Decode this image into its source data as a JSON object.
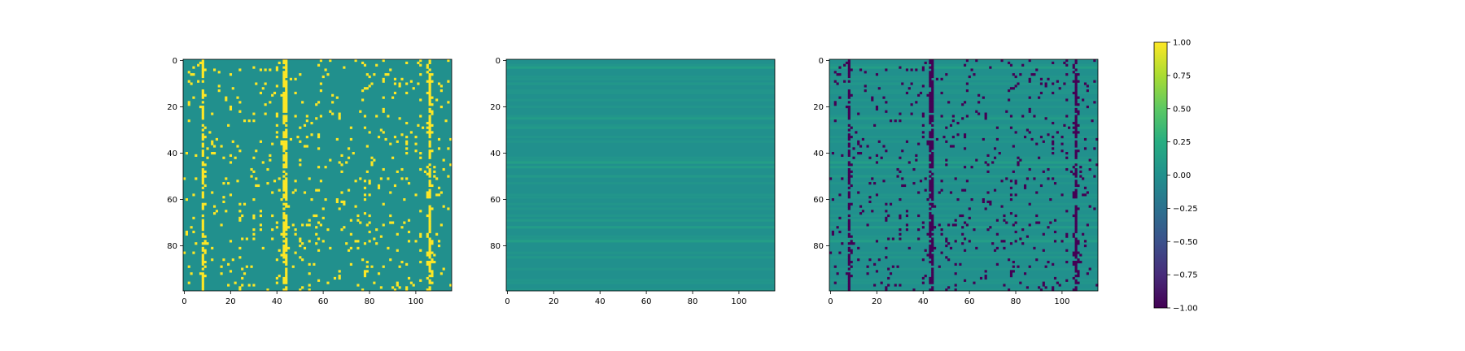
{
  "chart_data": [
    {
      "type": "heatmap",
      "title": "",
      "xlabel": "",
      "ylabel": "",
      "rows": 100,
      "cols": 116,
      "x_ticks": [
        "0",
        "20",
        "40",
        "60",
        "80",
        "100"
      ],
      "y_ticks": [
        "0",
        "20",
        "40",
        "60",
        "80"
      ],
      "value_range": [
        -1,
        1
      ],
      "background_value": 0.0,
      "highlight_value": 1.0,
      "dense_columns": [
        8,
        43,
        44,
        106
      ],
      "note_values": "binary matrix: cells are 0 or 1"
    },
    {
      "type": "heatmap",
      "title": "",
      "xlabel": "",
      "ylabel": "",
      "rows": 100,
      "cols": 116,
      "x_ticks": [
        "0",
        "20",
        "40",
        "60",
        "80",
        "100"
      ],
      "y_ticks": [
        "0",
        "20",
        "40",
        "60",
        "80"
      ],
      "value_range": [
        -1,
        1
      ],
      "background_value": 0.0,
      "row_band_values": [
        {
          "row": 3,
          "value": 0.12
        },
        {
          "row": 10,
          "value": 0.06
        },
        {
          "row": 25,
          "value": 0.1
        },
        {
          "row": 29,
          "value": 0.08
        },
        {
          "row": 44,
          "value": 0.12
        },
        {
          "row": 46,
          "value": 0.1
        },
        {
          "row": 50,
          "value": 0.08
        },
        {
          "row": 69,
          "value": 0.08
        },
        {
          "row": 72,
          "value": 0.1
        },
        {
          "row": 78,
          "value": 0.12
        },
        {
          "row": 85,
          "value": 0.06
        }
      ]
    },
    {
      "type": "heatmap",
      "title": "",
      "xlabel": "",
      "ylabel": "",
      "rows": 100,
      "cols": 116,
      "x_ticks": [
        "0",
        "20",
        "40",
        "60",
        "80",
        "100"
      ],
      "y_ticks": [
        "0",
        "20",
        "40",
        "60",
        "80"
      ],
      "value_range": [
        -1,
        1
      ],
      "background_value": 0.0,
      "highlight_value": -1.0,
      "dense_columns": [
        8,
        43,
        44,
        106
      ],
      "note_values": "difference matrix: cells are about -1 where the first matrix is 1, otherwise a small row value"
    }
  ],
  "colorbar": {
    "cmap": "viridis",
    "min": -1.0,
    "max": 1.0,
    "tick_labels": [
      "1.00",
      "0.75",
      "0.50",
      "0.25",
      "0.00",
      "−0.25",
      "−0.50",
      "−0.75",
      "−1.00"
    ],
    "tick_values": [
      1.0,
      0.75,
      0.5,
      0.25,
      0.0,
      -0.25,
      -0.5,
      -0.75,
      -1.0
    ]
  }
}
